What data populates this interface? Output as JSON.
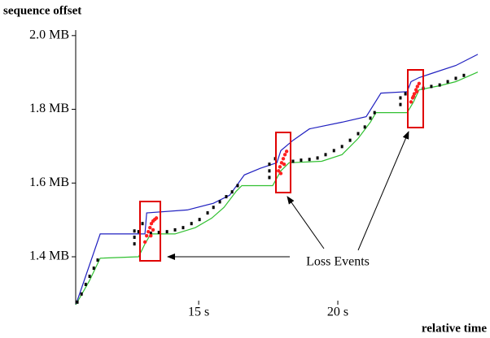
{
  "chart_data": {
    "type": "scatter",
    "y_label": "sequence offset",
    "x_label": "relative time",
    "annotation": "Loss Events",
    "xlim": [
      10.58,
      25.03
    ],
    "ylim": [
      1.27,
      2.015
    ],
    "xticks": [
      {
        "value": 15,
        "label": "15 s"
      },
      {
        "value": 20,
        "label": "20 s"
      }
    ],
    "yticks": [
      {
        "value": 1.4,
        "label": "1.4 MB"
      },
      {
        "value": 1.6,
        "label": "1.6 MB"
      },
      {
        "value": 1.8,
        "label": "1.8 MB"
      },
      {
        "value": 2.0,
        "label": "2.0 MB"
      }
    ],
    "grid": false,
    "series": [
      {
        "mode": "line",
        "color": "#2020c0",
        "x": [
          10.585,
          11.46,
          13.07,
          13.13,
          14.59,
          15.53,
          16.11,
          16.64,
          17.22,
          17.81,
          17.95,
          18.39,
          18.98,
          20.15,
          21.02,
          21.55,
          22.49,
          22.63,
          22.92,
          23.36,
          24.24,
          25.03
        ],
        "values": [
          1.27,
          1.462,
          1.462,
          1.519,
          1.527,
          1.545,
          1.567,
          1.622,
          1.64,
          1.655,
          1.688,
          1.716,
          1.747,
          1.765,
          1.78,
          1.844,
          1.848,
          1.875,
          1.886,
          1.897,
          1.919,
          1.949
        ]
      },
      {
        "mode": "line",
        "color": "#30c030",
        "x": [
          10.585,
          11.08,
          11.46,
          12.84,
          13.07,
          13.28,
          14.15,
          14.88,
          15.47,
          15.91,
          16.35,
          16.55,
          17.66,
          17.95,
          18.25,
          19.42,
          20.15,
          20.73,
          21.17,
          21.37,
          22.49,
          22.72,
          22.92,
          23.66,
          24.24,
          25.03
        ],
        "values": [
          1.27,
          1.336,
          1.396,
          1.4,
          1.435,
          1.462,
          1.462,
          1.479,
          1.505,
          1.534,
          1.578,
          1.593,
          1.593,
          1.633,
          1.655,
          1.659,
          1.677,
          1.721,
          1.765,
          1.791,
          1.791,
          1.82,
          1.853,
          1.864,
          1.875,
          1.901
        ]
      },
      {
        "mode": "markers",
        "color": "#000000",
        "x": [
          10.64,
          10.79,
          10.94,
          11.08,
          11.23,
          11.37,
          12.69,
          12.69,
          12.69,
          12.84,
          12.98,
          13.28,
          13.57,
          13.86,
          14.15,
          14.44,
          14.74,
          15.03,
          15.32,
          15.53,
          15.76,
          15.99,
          16.2,
          16.4,
          17.54,
          17.54,
          17.54,
          17.75,
          18.39,
          18.68,
          18.98,
          19.27,
          19.56,
          19.86,
          20.15,
          20.44,
          20.73,
          20.97,
          21.17,
          21.32,
          22.25,
          22.25,
          22.43,
          23.07,
          23.36,
          23.66,
          23.95,
          24.24,
          24.53
        ],
        "values": [
          1.277,
          1.299,
          1.325,
          1.347,
          1.369,
          1.391,
          1.435,
          1.453,
          1.47,
          1.468,
          1.49,
          1.464,
          1.466,
          1.468,
          1.473,
          1.479,
          1.49,
          1.501,
          1.519,
          1.534,
          1.549,
          1.563,
          1.576,
          1.593,
          1.615,
          1.633,
          1.651,
          1.666,
          1.659,
          1.662,
          1.664,
          1.668,
          1.677,
          1.688,
          1.699,
          1.716,
          1.734,
          1.752,
          1.776,
          1.791,
          1.813,
          1.831,
          1.842,
          1.857,
          1.862,
          1.866,
          1.875,
          1.884,
          1.892
        ]
      },
      {
        "mode": "markers",
        "color": "#ff2020",
        "x": [
          13.07,
          13.13,
          13.19,
          13.25,
          13.3,
          13.36,
          13.42,
          13.48,
          13.28,
          13.36,
          17.87,
          17.92,
          17.98,
          18.04,
          18.1,
          18.16,
          17.95,
          18.07,
          22.63,
          22.69,
          22.75,
          22.81,
          22.86,
          22.92,
          22.72,
          22.84
        ],
        "values": [
          1.44,
          1.457,
          1.468,
          1.479,
          1.49,
          1.497,
          1.501,
          1.505,
          1.457,
          1.473,
          1.633,
          1.644,
          1.655,
          1.666,
          1.677,
          1.686,
          1.626,
          1.651,
          1.82,
          1.831,
          1.842,
          1.853,
          1.862,
          1.87,
          1.835,
          1.848
        ]
      }
    ]
  }
}
